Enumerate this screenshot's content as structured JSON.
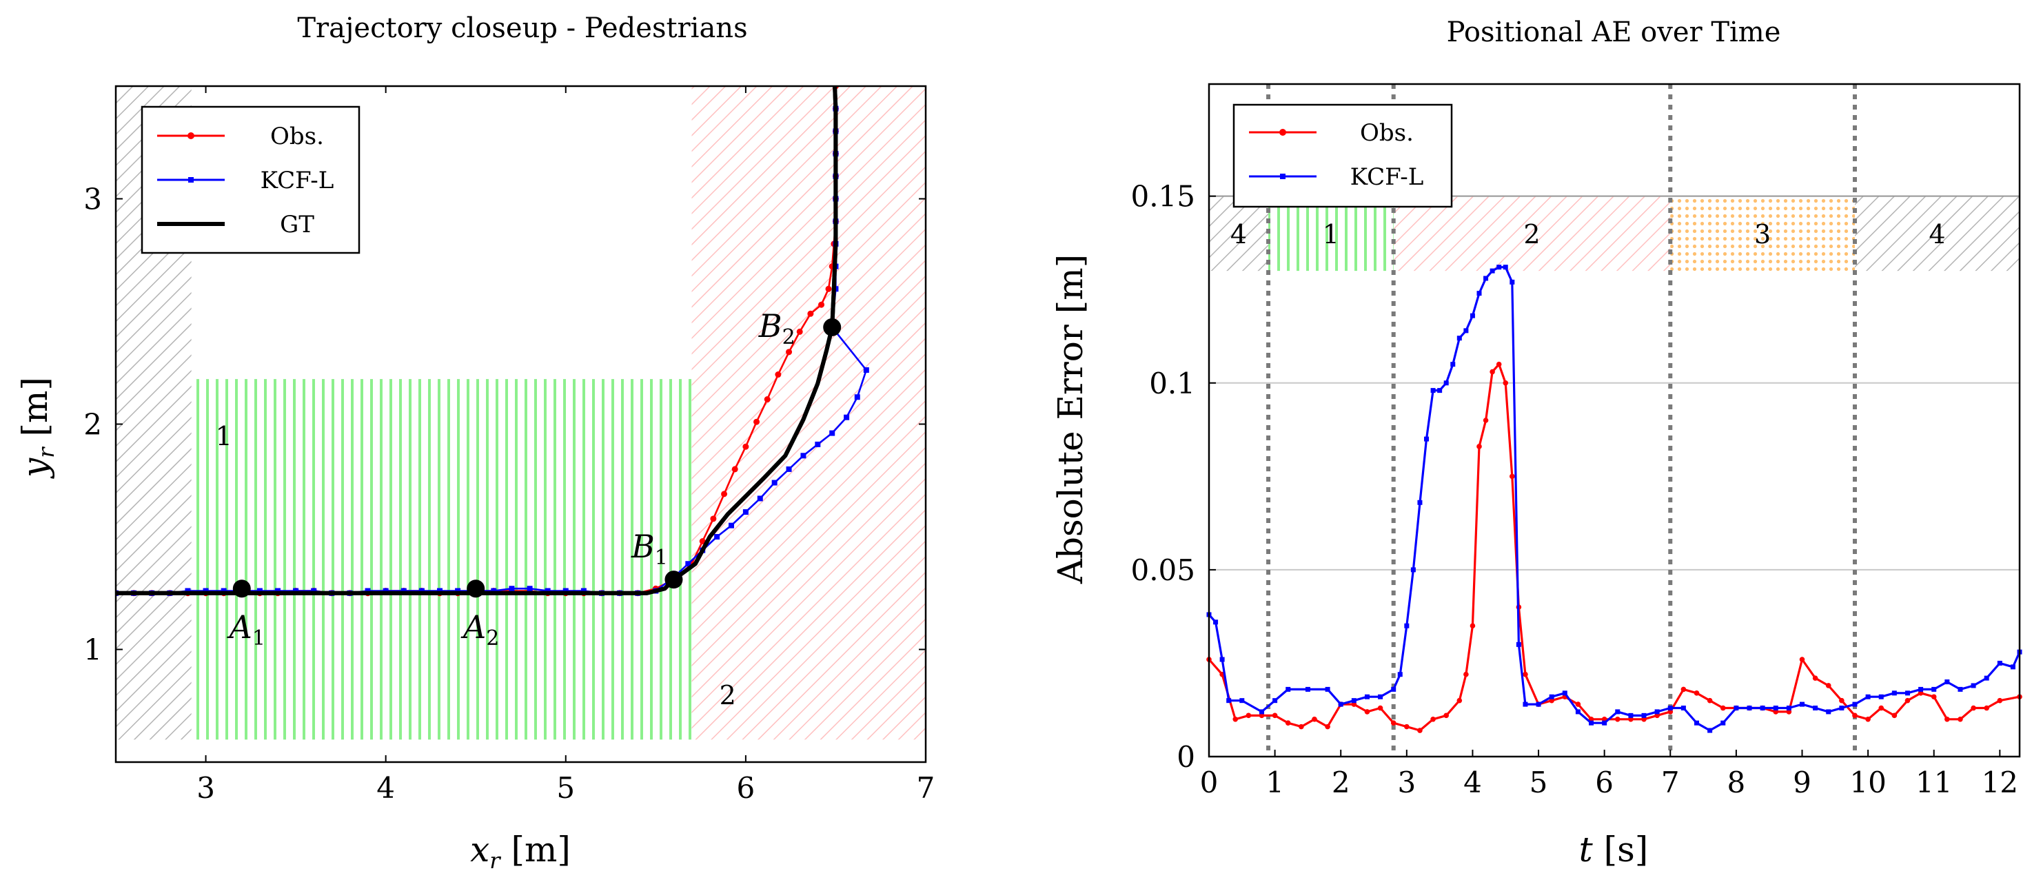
{
  "chart_data": [
    {
      "type": "line",
      "title": "Trajectory closeup - Pedestrians",
      "xlabel_var": "x",
      "xlabel_sub": "r",
      "xlabel_unit": " [m]",
      "ylabel_var": "y",
      "ylabel_sub": "r",
      "ylabel_unit": " [m]",
      "xlim": [
        2.5,
        7
      ],
      "ylim": [
        0.5,
        3.5
      ],
      "xticks": [
        "3",
        "4",
        "5",
        "6",
        "7"
      ],
      "yticks": [
        "1",
        "2",
        "3"
      ],
      "legend": {
        "position": "top-left",
        "items": [
          "Obs.",
          "KCF-L",
          "GT"
        ]
      },
      "regions": [
        {
          "label": "",
          "pattern": "diag-gray",
          "x": [
            2.5,
            2.92
          ],
          "y": [
            0.6,
            3.5
          ]
        },
        {
          "label": "1",
          "pattern": "vert-green",
          "x": [
            2.92,
            5.7
          ],
          "y": [
            0.6,
            2.2
          ],
          "label_at": [
            3.1,
            1.95
          ]
        },
        {
          "label": "2",
          "pattern": "diag-pink",
          "x": [
            5.7,
            7.0
          ],
          "y": [
            0.6,
            3.5
          ],
          "label_at": [
            5.9,
            0.8
          ]
        }
      ],
      "points": [
        {
          "name": "A",
          "sub": "1",
          "x": 3.2,
          "y": 1.27
        },
        {
          "name": "A",
          "sub": "2",
          "x": 4.5,
          "y": 1.27
        },
        {
          "name": "B",
          "sub": "1",
          "x": 5.6,
          "y": 1.31
        },
        {
          "name": "B",
          "sub": "2",
          "x": 6.48,
          "y": 2.43
        }
      ],
      "series": [
        {
          "name": "Obs.",
          "color": "#ff0000",
          "x": [
            2.5,
            2.6,
            2.7,
            2.8,
            2.9,
            3.0,
            3.1,
            3.2,
            3.3,
            3.4,
            3.5,
            3.6,
            3.7,
            3.8,
            3.9,
            4.0,
            4.1,
            4.2,
            4.3,
            4.4,
            4.5,
            4.6,
            4.7,
            4.8,
            4.9,
            5.0,
            5.1,
            5.2,
            5.3,
            5.4,
            5.5,
            5.6,
            5.7,
            5.76,
            5.82,
            5.88,
            5.94,
            6.0,
            6.06,
            6.12,
            6.18,
            6.24,
            6.3,
            6.36,
            6.42,
            6.46,
            6.48,
            6.49,
            6.5,
            6.5,
            6.5,
            6.5,
            6.5,
            6.5,
            6.5,
            6.5,
            6.5,
            6.49
          ],
          "y": [
            1.25,
            1.25,
            1.25,
            1.25,
            1.25,
            1.25,
            1.25,
            1.25,
            1.25,
            1.25,
            1.26,
            1.26,
            1.25,
            1.25,
            1.25,
            1.26,
            1.26,
            1.26,
            1.25,
            1.25,
            1.26,
            1.26,
            1.26,
            1.26,
            1.25,
            1.25,
            1.25,
            1.25,
            1.25,
            1.25,
            1.27,
            1.31,
            1.38,
            1.48,
            1.58,
            1.69,
            1.8,
            1.9,
            2.01,
            2.11,
            2.22,
            2.32,
            2.41,
            2.49,
            2.53,
            2.6,
            2.7,
            2.8,
            2.9,
            3.0,
            3.1,
            3.2,
            3.3,
            3.4,
            3.5,
            3.6,
            3.7,
            3.85
          ]
        },
        {
          "name": "KCF-L",
          "color": "#0000ff",
          "x": [
            2.5,
            2.6,
            2.7,
            2.8,
            2.9,
            3.0,
            3.1,
            3.2,
            3.3,
            3.4,
            3.5,
            3.6,
            3.7,
            3.8,
            3.9,
            4.0,
            4.1,
            4.2,
            4.3,
            4.4,
            4.5,
            4.6,
            4.7,
            4.8,
            4.9,
            5.0,
            5.1,
            5.2,
            5.3,
            5.4,
            5.5,
            5.6,
            5.68,
            5.76,
            5.84,
            5.92,
            6.0,
            6.08,
            6.16,
            6.24,
            6.32,
            6.4,
            6.48,
            6.56,
            6.62,
            6.67,
            6.48,
            6.5,
            6.5,
            6.5,
            6.5,
            6.5,
            6.5,
            6.5,
            6.5,
            6.5,
            6.5,
            6.49
          ],
          "y": [
            1.25,
            1.25,
            1.25,
            1.25,
            1.26,
            1.26,
            1.26,
            1.26,
            1.26,
            1.26,
            1.26,
            1.26,
            1.25,
            1.25,
            1.26,
            1.26,
            1.26,
            1.26,
            1.26,
            1.26,
            1.26,
            1.26,
            1.27,
            1.27,
            1.26,
            1.26,
            1.26,
            1.25,
            1.25,
            1.25,
            1.26,
            1.32,
            1.38,
            1.44,
            1.5,
            1.55,
            1.61,
            1.67,
            1.74,
            1.8,
            1.86,
            1.91,
            1.96,
            2.03,
            2.12,
            2.24,
            2.43,
            2.6,
            2.7,
            2.8,
            2.9,
            3.0,
            3.1,
            3.2,
            3.3,
            3.4,
            3.6,
            3.85
          ]
        },
        {
          "name": "GT",
          "color": "#000000",
          "x": [
            2.5,
            5.45,
            5.55,
            5.6,
            5.72,
            5.8,
            5.9,
            6.0,
            6.1,
            6.22,
            6.32,
            6.4,
            6.45,
            6.48,
            6.49,
            6.5,
            6.5,
            6.5,
            6.5,
            6.49,
            6.49
          ],
          "y": [
            1.25,
            1.25,
            1.27,
            1.31,
            1.38,
            1.5,
            1.6,
            1.68,
            1.76,
            1.86,
            2.02,
            2.18,
            2.33,
            2.43,
            2.6,
            2.8,
            3.0,
            3.2,
            3.4,
            3.6,
            3.85
          ]
        }
      ]
    },
    {
      "type": "line",
      "title": "Positional AE over Time",
      "xlabel_var": "t",
      "xlabel_unit": " [s]",
      "ylabel": "Absolute Error [m]",
      "xlim": [
        0,
        12.3
      ],
      "ylim": [
        0,
        0.18
      ],
      "xticks": [
        "0",
        "1",
        "2",
        "3",
        "4",
        "5",
        "6",
        "7",
        "8",
        "9",
        "10",
        "11",
        "12"
      ],
      "yticks": [
        "0",
        "0.05",
        "0.1",
        "0.15"
      ],
      "grid": "horizontal",
      "legend": {
        "position": "top-left",
        "items": [
          "Obs.",
          "KCF-L"
        ]
      },
      "phase_boundaries": [
        0.9,
        2.8,
        7.0,
        9.8
      ],
      "phase_band": [
        0.13,
        0.15
      ],
      "phases": [
        {
          "label": "4",
          "pattern": "diag-gray",
          "x": [
            0,
            0.9
          ]
        },
        {
          "label": "1",
          "pattern": "vert-green",
          "x": [
            0.9,
            2.8
          ]
        },
        {
          "label": "2",
          "pattern": "diag-pink",
          "x": [
            2.8,
            7.0
          ]
        },
        {
          "label": "3",
          "pattern": "dots-orange",
          "x": [
            7.0,
            9.8
          ]
        },
        {
          "label": "4",
          "pattern": "diag-gray",
          "x": [
            9.8,
            12.3
          ]
        }
      ],
      "series": [
        {
          "name": "Obs.",
          "color": "#ff0000",
          "x": [
            0,
            0.2,
            0.4,
            0.6,
            0.8,
            1.0,
            1.2,
            1.4,
            1.6,
            1.8,
            2.0,
            2.2,
            2.4,
            2.6,
            2.8,
            3.0,
            3.2,
            3.4,
            3.6,
            3.8,
            3.9,
            4.0,
            4.1,
            4.2,
            4.3,
            4.4,
            4.5,
            4.6,
            4.7,
            4.8,
            5.0,
            5.2,
            5.4,
            5.6,
            5.8,
            6.0,
            6.2,
            6.4,
            6.6,
            6.8,
            7.0,
            7.2,
            7.4,
            7.6,
            7.8,
            8.0,
            8.2,
            8.4,
            8.6,
            8.8,
            9.0,
            9.2,
            9.4,
            9.6,
            9.8,
            10.0,
            10.2,
            10.4,
            10.6,
            10.8,
            11.0,
            11.2,
            11.4,
            11.6,
            11.8,
            12.0,
            12.3
          ],
          "y": [
            0.026,
            0.022,
            0.01,
            0.011,
            0.011,
            0.011,
            0.009,
            0.008,
            0.01,
            0.008,
            0.014,
            0.014,
            0.012,
            0.013,
            0.009,
            0.008,
            0.007,
            0.01,
            0.011,
            0.015,
            0.022,
            0.035,
            0.083,
            0.09,
            0.103,
            0.105,
            0.1,
            0.075,
            0.04,
            0.022,
            0.014,
            0.015,
            0.016,
            0.014,
            0.01,
            0.01,
            0.01,
            0.01,
            0.01,
            0.011,
            0.012,
            0.018,
            0.017,
            0.015,
            0.013,
            0.013,
            0.013,
            0.013,
            0.012,
            0.012,
            0.026,
            0.021,
            0.019,
            0.015,
            0.011,
            0.01,
            0.013,
            0.011,
            0.015,
            0.017,
            0.016,
            0.01,
            0.01,
            0.013,
            0.013,
            0.015,
            0.016
          ]
        },
        {
          "name": "KCF-L",
          "color": "#0000ff",
          "x": [
            0,
            0.1,
            0.2,
            0.3,
            0.5,
            0.8,
            1.0,
            1.2,
            1.5,
            1.8,
            2.0,
            2.2,
            2.4,
            2.6,
            2.8,
            2.9,
            3.0,
            3.1,
            3.2,
            3.3,
            3.4,
            3.5,
            3.6,
            3.7,
            3.8,
            3.9,
            4.0,
            4.1,
            4.2,
            4.3,
            4.4,
            4.5,
            4.6,
            4.7,
            4.8,
            5.0,
            5.2,
            5.4,
            5.6,
            5.8,
            6.0,
            6.2,
            6.4,
            6.6,
            6.8,
            7.0,
            7.2,
            7.4,
            7.6,
            7.8,
            8.0,
            8.2,
            8.4,
            8.6,
            8.8,
            9.0,
            9.2,
            9.4,
            9.6,
            9.8,
            10.0,
            10.2,
            10.4,
            10.6,
            10.8,
            11.0,
            11.2,
            11.4,
            11.6,
            11.8,
            12.0,
            12.2,
            12.3
          ],
          "y": [
            0.038,
            0.036,
            0.026,
            0.015,
            0.015,
            0.012,
            0.015,
            0.018,
            0.018,
            0.018,
            0.014,
            0.015,
            0.016,
            0.016,
            0.018,
            0.022,
            0.035,
            0.05,
            0.068,
            0.085,
            0.098,
            0.098,
            0.1,
            0.105,
            0.112,
            0.114,
            0.118,
            0.124,
            0.128,
            0.13,
            0.131,
            0.131,
            0.127,
            0.03,
            0.014,
            0.014,
            0.016,
            0.017,
            0.012,
            0.009,
            0.009,
            0.012,
            0.011,
            0.011,
            0.012,
            0.013,
            0.013,
            0.009,
            0.007,
            0.009,
            0.013,
            0.013,
            0.013,
            0.013,
            0.013,
            0.014,
            0.013,
            0.012,
            0.013,
            0.014,
            0.016,
            0.016,
            0.017,
            0.017,
            0.018,
            0.018,
            0.02,
            0.018,
            0.019,
            0.021,
            0.025,
            0.024,
            0.028
          ]
        }
      ]
    }
  ]
}
